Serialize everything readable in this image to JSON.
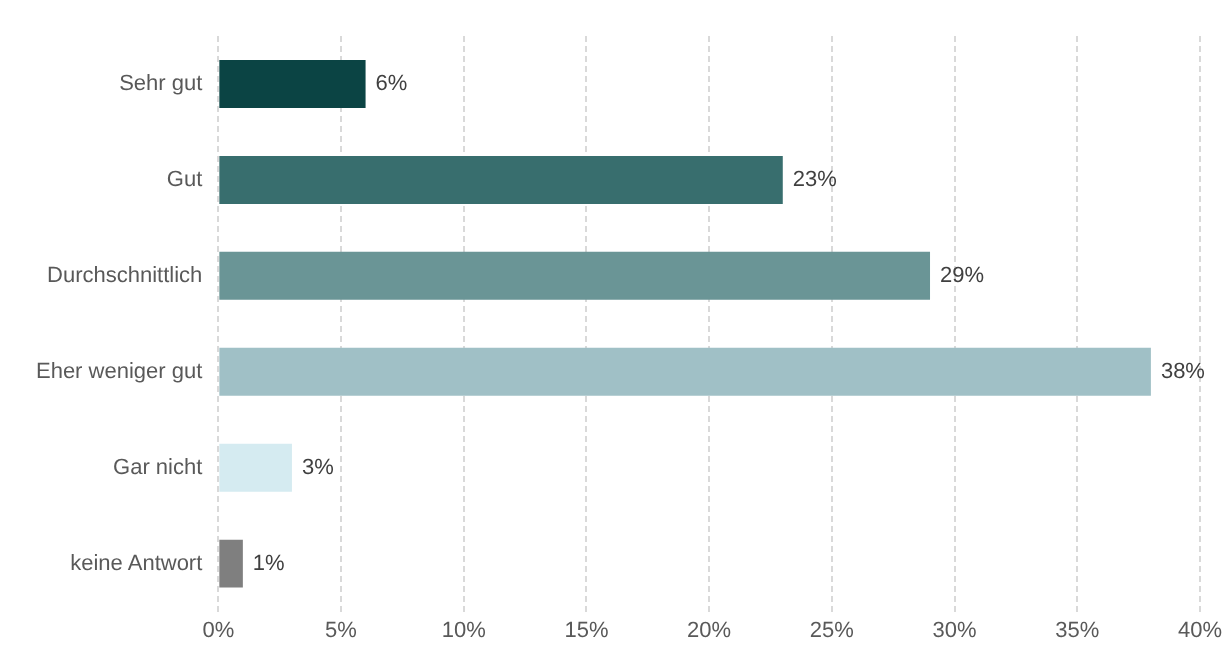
{
  "chart_data": {
    "type": "bar",
    "orientation": "horizontal",
    "categories": [
      "Sehr gut",
      "Gut",
      "Durchschnittlich",
      "Eher weniger gut",
      "Gar nicht",
      "keine Antwort"
    ],
    "values": [
      6,
      23,
      29,
      38,
      3,
      1
    ],
    "colors": [
      "#0b4444",
      "#386e6e",
      "#6a9596",
      "#a0c0c6",
      "#d5ebf1",
      "#7f7f7f"
    ],
    "xlim": [
      0,
      40
    ],
    "xticks": [
      {
        "value": 0,
        "label": "0%"
      },
      {
        "value": 5,
        "label": "5%"
      },
      {
        "value": 10,
        "label": "10%"
      },
      {
        "value": 15,
        "label": "15%"
      },
      {
        "value": 20,
        "label": "20%"
      },
      {
        "value": 25,
        "label": "25%"
      },
      {
        "value": 30,
        "label": "30%"
      },
      {
        "value": 35,
        "label": "35%"
      },
      {
        "value": 40,
        "label": "40%"
      }
    ],
    "value_labels": [
      "6%",
      "23%",
      "29%",
      "38%",
      "3%",
      "1%"
    ],
    "grid": "x",
    "legend": false
  }
}
